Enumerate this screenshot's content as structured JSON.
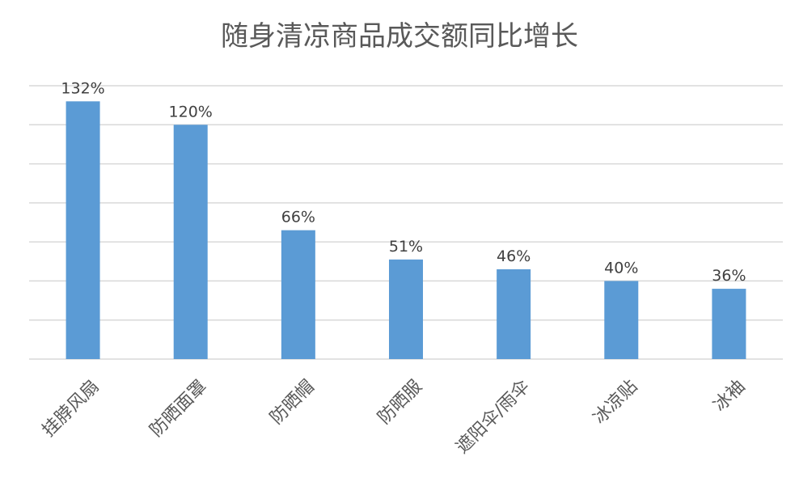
{
  "chart_data": {
    "type": "bar",
    "title": "随身清凉商品成交额同比增长",
    "xlabel": "",
    "ylabel": "",
    "categories": [
      "挂脖风扇",
      "防晒面罩",
      "防晒帽",
      "防晒服",
      "遮阳伞/雨伞",
      "冰凉贴",
      "冰袖"
    ],
    "values": [
      132,
      120,
      66,
      51,
      46,
      40,
      36
    ],
    "data_labels": [
      "132%",
      "120%",
      "66%",
      "51%",
      "46%",
      "40%",
      "36%"
    ],
    "ylim": [
      0,
      140
    ],
    "y_tick_step": 20,
    "y_axis_labels_shown": false,
    "grid": true,
    "legend": "none",
    "bar_color": "#5b9bd5",
    "x_tick_rotation": "-45deg"
  }
}
